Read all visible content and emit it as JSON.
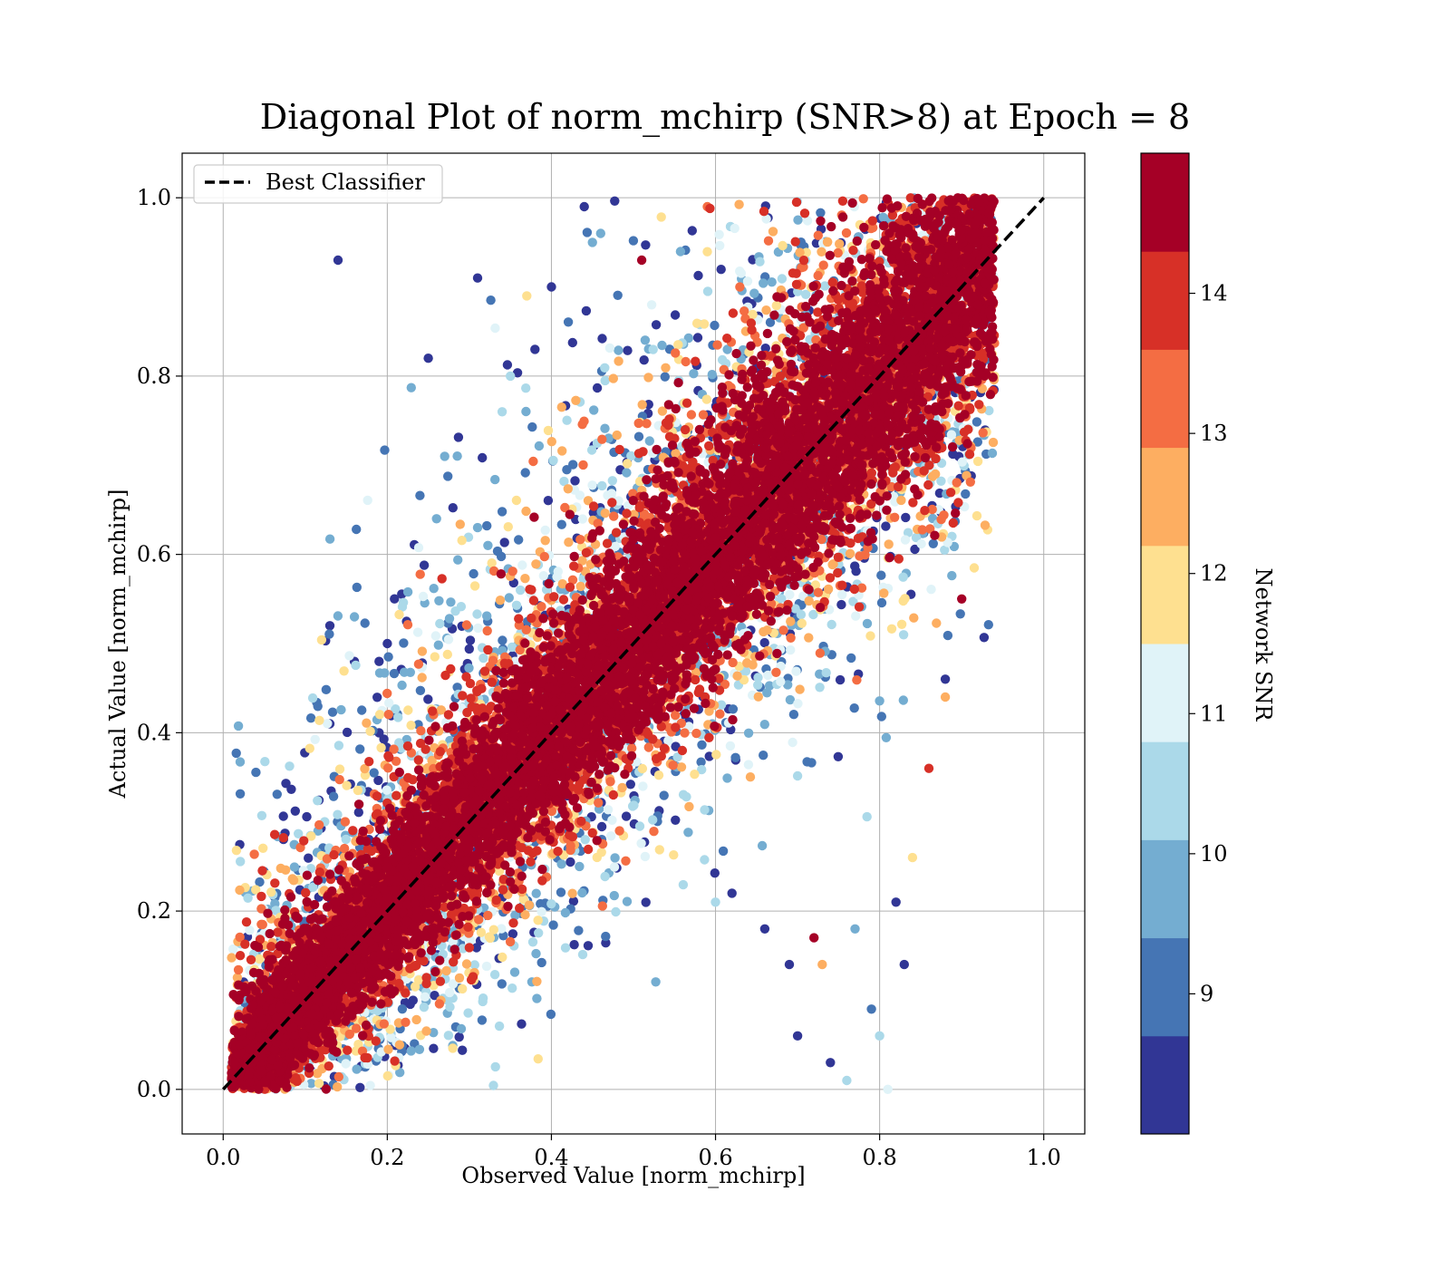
{
  "chart_data": {
    "type": "scatter",
    "title": "Diagonal Plot of norm_mchirp (SNR>8) at Epoch = 8",
    "xlabel": "Observed Value [norm_mchirp]",
    "ylabel": "Actual Value [norm_mchirp]",
    "xlim": [
      -0.05,
      1.05
    ],
    "ylim": [
      -0.05,
      1.05
    ],
    "xticks": [
      "0.0",
      "0.2",
      "0.4",
      "0.6",
      "0.8",
      "1.0"
    ],
    "yticks": [
      "0.0",
      "0.2",
      "0.4",
      "0.6",
      "0.8",
      "1.0"
    ],
    "grid": true,
    "legend": {
      "placement": "upper-left",
      "entries": [
        "Best Classifier"
      ]
    },
    "reference_line": {
      "name": "Best Classifier",
      "x": [
        0,
        1
      ],
      "y": [
        0,
        1
      ],
      "style": "dashed",
      "color": "#000000"
    },
    "colorbar": {
      "label": "Network SNR",
      "range": [
        8.0,
        15.0
      ],
      "ticks": [
        "9",
        "10",
        "11",
        "12",
        "13",
        "14"
      ],
      "tick_values": [
        9,
        10,
        11,
        12,
        13,
        14
      ],
      "colors": [
        "#313695",
        "#4575b4",
        "#74add1",
        "#abd9e9",
        "#e0f3f8",
        "#fee090",
        "#fdae61",
        "#f46d43",
        "#d73027",
        "#a50026"
      ]
    },
    "scatter_envelope": {
      "x_range": [
        0.01,
        0.94
      ],
      "y_range": [
        0.0,
        1.0
      ],
      "dense_core": "high SNR (~14-15) points tightly along y = x",
      "outliers": "low SNR (~8-10) points spread away from the diagonal"
    },
    "sample_points": [
      [
        0.14,
        0.93,
        8.3
      ],
      [
        0.31,
        0.91,
        8.4
      ],
      [
        0.25,
        0.82,
        8.3
      ],
      [
        0.27,
        0.71,
        9.8
      ],
      [
        0.35,
        0.8,
        10.2
      ],
      [
        0.34,
        0.76,
        10.3
      ],
      [
        0.26,
        0.64,
        9.6
      ],
      [
        0.31,
        0.63,
        10.1
      ],
      [
        0.13,
        0.52,
        8.4
      ],
      [
        0.16,
        0.53,
        9.7
      ],
      [
        0.2,
        0.5,
        8.2
      ],
      [
        0.16,
        0.48,
        8.3
      ],
      [
        0.19,
        0.48,
        8.3
      ],
      [
        0.13,
        0.41,
        8.2
      ],
      [
        0.19,
        0.4,
        8.2
      ],
      [
        0.37,
        0.89,
        11.8
      ],
      [
        0.38,
        0.83,
        8.3
      ],
      [
        0.4,
        0.9,
        8.3
      ],
      [
        0.44,
        0.99,
        8.4
      ],
      [
        0.45,
        0.95,
        9.6
      ],
      [
        0.46,
        0.96,
        9.5
      ],
      [
        0.51,
        0.93,
        14.6
      ],
      [
        0.59,
        0.99,
        13.5
      ],
      [
        0.6,
        0.21,
        10.2
      ],
      [
        0.62,
        0.22,
        8.2
      ],
      [
        0.66,
        0.18,
        8.3
      ],
      [
        0.69,
        0.14,
        8.4
      ],
      [
        0.7,
        0.06,
        8.3
      ],
      [
        0.74,
        0.03,
        8.2
      ],
      [
        0.79,
        0.09,
        9.2
      ],
      [
        0.8,
        0.06,
        10.3
      ],
      [
        0.83,
        0.14,
        8.2
      ],
      [
        0.77,
        0.18,
        9.6
      ],
      [
        0.72,
        0.17,
        14.4
      ],
      [
        0.73,
        0.14,
        12.3
      ],
      [
        0.76,
        0.01,
        10.5
      ],
      [
        0.84,
        0.26,
        12.2
      ],
      [
        0.86,
        0.36,
        14.1
      ],
      [
        0.82,
        0.21,
        8.3
      ],
      [
        0.81,
        0.0,
        11.4
      ],
      [
        0.88,
        0.44,
        12.4
      ],
      [
        0.88,
        0.46,
        8.4
      ],
      [
        0.9,
        0.55,
        14.7
      ],
      [
        0.94,
        0.8,
        11.8
      ]
    ]
  }
}
